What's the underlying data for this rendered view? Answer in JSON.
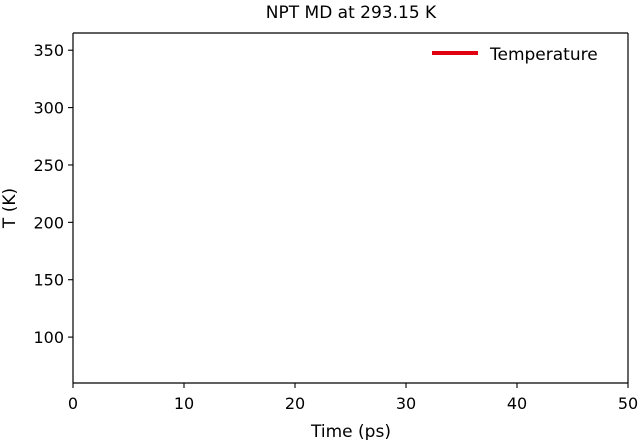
{
  "chart_data": {
    "type": "line",
    "title": "NPT MD at 293.15 K",
    "xlabel": "Time (ps)",
    "ylabel": "T (K)",
    "xlim": [
      0,
      50
    ],
    "ylim": [
      60,
      365
    ],
    "xticks": [
      0,
      10,
      20,
      30,
      40,
      50
    ],
    "yticks": [
      100,
      150,
      200,
      250,
      300,
      350
    ],
    "grid": false,
    "legend_position": "top-right",
    "series": [
      {
        "name": "Temperature",
        "color": "#e0000f",
        "x": [],
        "y": []
      }
    ]
  }
}
